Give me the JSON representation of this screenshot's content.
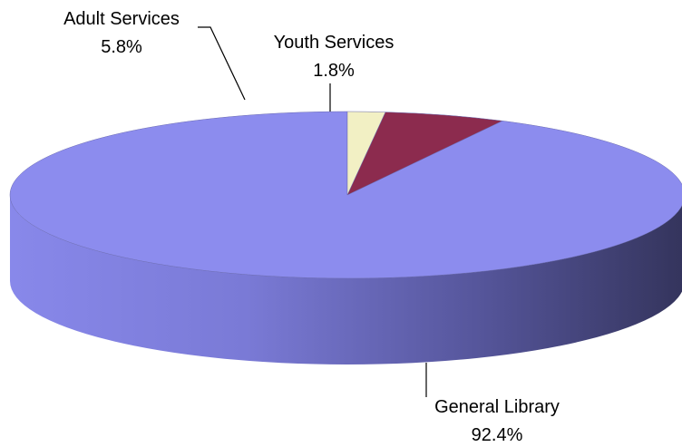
{
  "chart_data": {
    "type": "pie",
    "style": "3d",
    "categories": [
      "General Library",
      "Adult Services",
      "Youth Services"
    ],
    "values": [
      92.4,
      5.8,
      1.8
    ],
    "labels": [
      {
        "name": "General Library",
        "pct": "92.4%"
      },
      {
        "name": "Adult Services",
        "pct": "5.8%"
      },
      {
        "name": "Youth Services",
        "pct": "1.8%"
      }
    ],
    "colors": {
      "General Library": "#8C8CEE",
      "Adult Services": "#8C2B4E",
      "Youth Services": "#F2F0C4"
    },
    "legend": "none"
  }
}
